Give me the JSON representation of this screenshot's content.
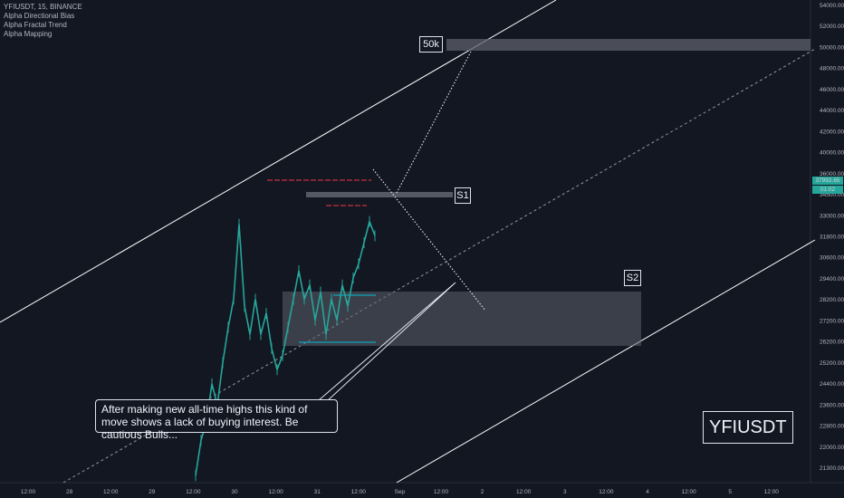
{
  "header": {
    "symbol_line": "YFIUSDT, 15, BINANCE",
    "indicators": [
      "Alpha Directional Bias",
      "Alpha Fractal Trend",
      "Alpha Mapping"
    ]
  },
  "labels": {
    "target": "50k",
    "s1": "S1",
    "s2": "S2",
    "symbol_watermark": "YFIUSDT",
    "callout": "After making new all-time highs this kind of move shows a lack of buying interest. Be cautious Bulls..."
  },
  "price_tags": {
    "last_price": "37992.65",
    "countdown": "01:02"
  },
  "colors": {
    "background": "#131722",
    "candles": "#26a69a",
    "zone_fill": "#9598a1",
    "red_levels": "#f23645",
    "cyan_levels": "#00bcd4",
    "lines": "#ffffff"
  },
  "chart_data": {
    "type": "line",
    "title": "YFIUSDT, 15, BINANCE",
    "xlabel": "",
    "ylabel": "",
    "ylim": [
      20500,
      54500
    ],
    "yticks": [
      "54000.00",
      "52000.00",
      "50000.00",
      "48000.00",
      "46000.00",
      "44000.00",
      "42000.00",
      "40000.00",
      "36000.00",
      "34500.00",
      "33000.00",
      "31800.00",
      "30600.00",
      "29400.00",
      "28200.00",
      "27200.00",
      "26200.00",
      "25200.00",
      "24400.00",
      "23600.00",
      "22800.00",
      "22000.00",
      "21300.00"
    ],
    "xticks": [
      "12:00",
      "28",
      "12:00",
      "29",
      "12:00",
      "30",
      "12:00",
      "31",
      "12:00",
      "Sep",
      "12:00",
      "2",
      "12:00",
      "3",
      "12:00",
      "4",
      "12:00",
      "5",
      "12:00"
    ],
    "series": [
      {
        "values": [
          21000,
          23500,
          24800,
          27500,
          26000,
          29000,
          31500,
          33500,
          38800,
          33000,
          31000,
          33500,
          31000,
          32500,
          30000,
          28500,
          29500,
          31500,
          33500,
          35500,
          33500,
          34500,
          32000,
          34000,
          31000,
          33500,
          32000,
          34500,
          33000,
          35000,
          36000,
          37500,
          39000,
          37992.65
        ]
      }
    ],
    "zones": [
      {
        "label": "50k",
        "from": 49400,
        "to": 50200
      },
      {
        "label": "S1",
        "from": 36800,
        "to": 37200
      },
      {
        "label": "S2",
        "from": 27250,
        "to": 30300
      }
    ],
    "last_price": 37992.65,
    "grid": false
  }
}
